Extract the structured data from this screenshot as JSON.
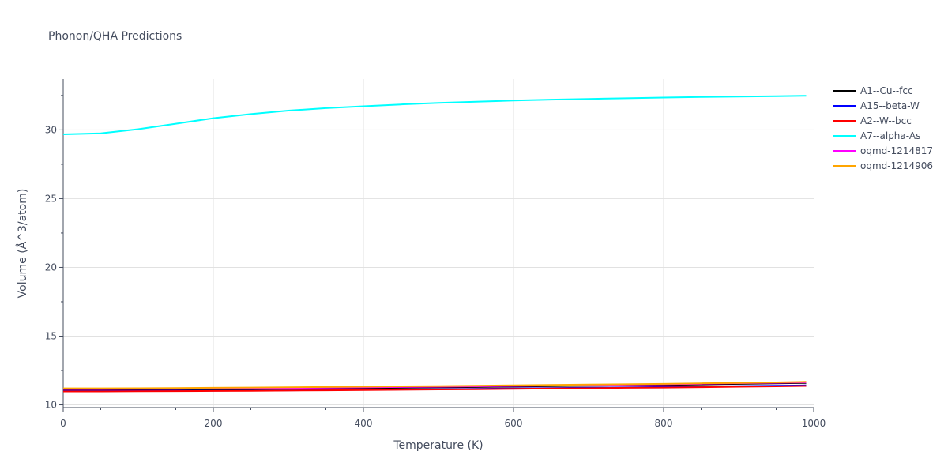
{
  "chart_data": {
    "type": "line",
    "title": "Phonon/QHA Predictions",
    "xlabel": "Temperature (K)",
    "ylabel": "Volume (Å^3/atom)",
    "xlim": [
      0,
      1000
    ],
    "ylim": [
      9.8,
      33.7
    ],
    "xticks": [
      0,
      200,
      400,
      600,
      800,
      1000
    ],
    "yticks": [
      10,
      15,
      20,
      25,
      30
    ],
    "grid": true,
    "legend_position": "right",
    "x": [
      0,
      50,
      100,
      150,
      200,
      250,
      300,
      350,
      400,
      450,
      500,
      550,
      600,
      650,
      700,
      750,
      800,
      850,
      900,
      950,
      990
    ],
    "series": [
      {
        "name": "A1--Cu--fcc",
        "color": "#000000",
        "values": [
          11.1,
          11.1,
          11.11,
          11.12,
          11.13,
          11.15,
          11.17,
          11.19,
          11.22,
          11.24,
          11.27,
          11.3,
          11.33,
          11.36,
          11.39,
          11.42,
          11.45,
          11.49,
          11.53,
          11.57,
          11.6
        ]
      },
      {
        "name": "A15--beta-W",
        "color": "#0000ff",
        "values": [
          11.0,
          11.0,
          11.01,
          11.02,
          11.03,
          11.04,
          11.06,
          11.08,
          11.1,
          11.12,
          11.14,
          11.17,
          11.19,
          11.22,
          11.25,
          11.27,
          11.3,
          11.33,
          11.36,
          11.39,
          11.42
        ]
      },
      {
        "name": "A2--W--bcc",
        "color": "#ff0000",
        "values": [
          10.98,
          10.98,
          10.99,
          11.0,
          11.01,
          11.02,
          11.04,
          11.06,
          11.08,
          11.1,
          11.12,
          11.14,
          11.16,
          11.19,
          11.21,
          11.24,
          11.26,
          11.29,
          11.32,
          11.35,
          11.38
        ]
      },
      {
        "name": "A7--alpha-As",
        "color": "#00ffff",
        "values": [
          29.68,
          29.75,
          30.05,
          30.45,
          30.85,
          31.15,
          31.4,
          31.58,
          31.72,
          31.85,
          31.96,
          32.05,
          32.13,
          32.2,
          32.25,
          32.3,
          32.35,
          32.39,
          32.42,
          32.45,
          32.48
        ]
      },
      {
        "name": "oqmd-1214817",
        "color": "#ff00ff",
        "values": [
          11.15,
          11.15,
          11.16,
          11.17,
          11.19,
          11.21,
          11.23,
          11.25,
          11.27,
          11.3,
          11.32,
          11.35,
          11.38,
          11.41,
          11.44,
          11.47,
          11.5,
          11.54,
          11.58,
          11.61,
          11.64
        ]
      },
      {
        "name": "oqmd-1214906",
        "color": "#ffa500",
        "values": [
          11.2,
          11.2,
          11.21,
          11.22,
          11.24,
          11.26,
          11.28,
          11.3,
          11.32,
          11.35,
          11.37,
          11.4,
          11.42,
          11.45,
          11.48,
          11.5,
          11.53,
          11.57,
          11.6,
          11.64,
          11.68
        ]
      }
    ]
  }
}
